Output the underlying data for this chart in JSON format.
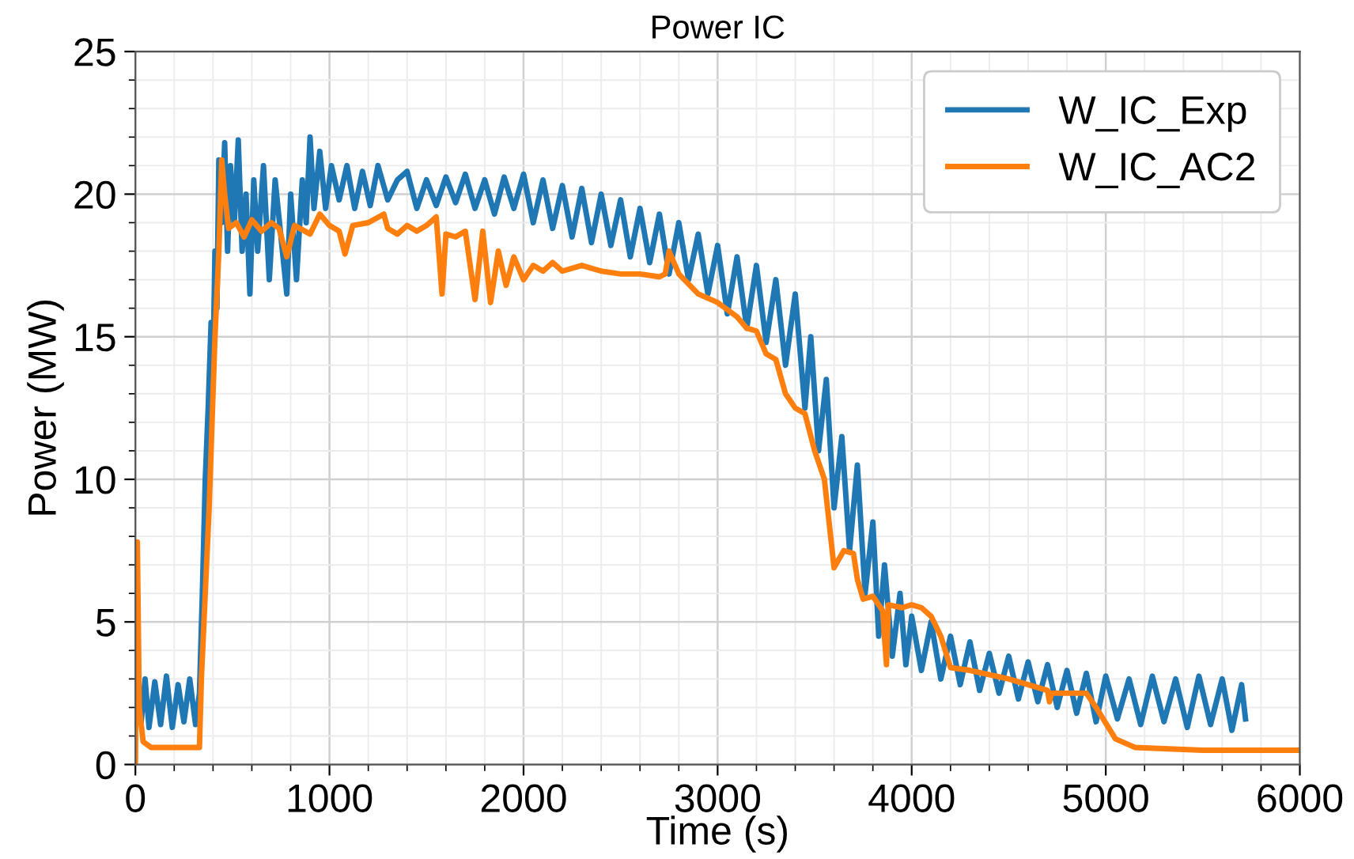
{
  "chart_data": {
    "type": "line",
    "title": "Power IC",
    "xlabel": "Time (s)",
    "ylabel": "Power (MW)",
    "xlim": [
      0,
      6000
    ],
    "ylim": [
      0,
      25
    ],
    "xticks": [
      0,
      {
        "value": 200,
        "label": null
      },
      {
        "value": 400,
        "label": null
      },
      {
        "value": 600,
        "label": null
      },
      {
        "value": 800,
        "label": null
      },
      1000,
      {
        "value": 1200,
        "label": null
      },
      {
        "value": 1400,
        "label": null
      },
      {
        "value": 1600,
        "label": null
      },
      {
        "value": 1800,
        "label": null
      },
      2000,
      {
        "value": 2200,
        "label": null
      },
      {
        "value": 2400,
        "label": null
      },
      {
        "value": 2600,
        "label": null
      },
      {
        "value": 2800,
        "label": null
      },
      3000,
      {
        "value": 3200,
        "label": null
      },
      {
        "value": 3400,
        "label": null
      },
      {
        "value": 3600,
        "label": null
      },
      {
        "value": 3800,
        "label": null
      },
      4000,
      {
        "value": 4200,
        "label": null
      },
      {
        "value": 4400,
        "label": null
      },
      {
        "value": 4600,
        "label": null
      },
      {
        "value": 4800,
        "label": null
      },
      5000,
      {
        "value": 5200,
        "label": null
      },
      {
        "value": 5400,
        "label": null
      },
      {
        "value": 5600,
        "label": null
      },
      {
        "value": 5800,
        "label": null
      },
      6000
    ],
    "yticks": [
      0,
      {
        "value": 1,
        "label": null
      },
      {
        "value": 2,
        "label": null
      },
      {
        "value": 3,
        "label": null
      },
      {
        "value": 4,
        "label": null
      },
      5,
      {
        "value": 6,
        "label": null
      },
      {
        "value": 7,
        "label": null
      },
      {
        "value": 8,
        "label": null
      },
      {
        "value": 9,
        "label": null
      },
      10,
      {
        "value": 11,
        "label": null
      },
      {
        "value": 12,
        "label": null
      },
      {
        "value": 13,
        "label": null
      },
      {
        "value": 14,
        "label": null
      },
      15,
      {
        "value": 16,
        "label": null
      },
      {
        "value": 17,
        "label": null
      },
      {
        "value": 18,
        "label": null
      },
      {
        "value": 19,
        "label": null
      },
      20,
      {
        "value": 21,
        "label": null
      },
      {
        "value": 22,
        "label": null
      },
      {
        "value": 23,
        "label": null
      },
      {
        "value": 24,
        "label": null
      },
      25
    ],
    "grid": true,
    "legend": "top right",
    "line_style": "solid",
    "series": [
      {
        "name": "W_IC_Exp",
        "color": "#1f77b4",
        "x": [
          15,
          30,
          50,
          70,
          100,
          130,
          160,
          190,
          220,
          250,
          280,
          310,
          330,
          345,
          360,
          375,
          390,
          400,
          410,
          420,
          430,
          445,
          460,
          475,
          490,
          510,
          530,
          550,
          570,
          590,
          610,
          630,
          660,
          690,
          720,
          750,
          780,
          800,
          830,
          860,
          880,
          900,
          920,
          950,
          980,
          1010,
          1050,
          1090,
          1130,
          1170,
          1210,
          1250,
          1300,
          1350,
          1400,
          1450,
          1500,
          1550,
          1600,
          1650,
          1700,
          1750,
          1800,
          1850,
          1900,
          1950,
          2000,
          2050,
          2100,
          2150,
          2200,
          2250,
          2300,
          2350,
          2400,
          2450,
          2500,
          2550,
          2600,
          2650,
          2700,
          2750,
          2800,
          2850,
          2900,
          2950,
          3000,
          3050,
          3100,
          3150,
          3200,
          3250,
          3300,
          3350,
          3400,
          3450,
          3480,
          3520,
          3560,
          3600,
          3640,
          3680,
          3720,
          3760,
          3800,
          3830,
          3860,
          3900,
          3940,
          3970,
          4000,
          4050,
          4100,
          4150,
          4200,
          4250,
          4300,
          4350,
          4400,
          4450,
          4500,
          4550,
          4600,
          4650,
          4700,
          4750,
          4800,
          4850,
          4900,
          4950,
          5000,
          5060,
          5120,
          5180,
          5240,
          5300,
          5360,
          5420,
          5480,
          5540,
          5600,
          5650,
          5700,
          5720
        ],
        "values": [
          2.5,
          1.5,
          3.0,
          1.3,
          2.9,
          1.4,
          3.1,
          1.3,
          2.8,
          1.5,
          3.0,
          1.4,
          2.5,
          6,
          10,
          12.5,
          15.5,
          14,
          18,
          16,
          21.2,
          19,
          21.8,
          18,
          21,
          19,
          21.9,
          18,
          20,
          16.5,
          20.5,
          18,
          21,
          17,
          20.5,
          18.5,
          16.5,
          20,
          17,
          20.5,
          19,
          22,
          19.5,
          21.5,
          19.5,
          21,
          19.8,
          21,
          19.5,
          20.8,
          19.6,
          21,
          19.8,
          20.5,
          20.8,
          19.5,
          20.5,
          19.6,
          20.6,
          19.7,
          20.7,
          19.5,
          20.5,
          19.3,
          20.6,
          19.5,
          20.7,
          19,
          20.5,
          18.8,
          20.3,
          18.5,
          20.2,
          18.3,
          20,
          18.2,
          19.8,
          17.8,
          19.5,
          17.6,
          19.3,
          17.2,
          19,
          17,
          18.6,
          16.5,
          18.2,
          15.8,
          17.8,
          15.3,
          17.5,
          14.8,
          17,
          14,
          16.5,
          12.5,
          15,
          11,
          13.5,
          9,
          11.5,
          7.5,
          10.5,
          6,
          8.5,
          4.5,
          7,
          3.8,
          6,
          3.5,
          5.2,
          3.3,
          5,
          3,
          4.5,
          2.8,
          4.3,
          2.6,
          3.9,
          2.5,
          3.8,
          2.3,
          3.6,
          2.2,
          3.5,
          2,
          3.3,
          1.8,
          3.2,
          1.5,
          3.1,
          1.6,
          3.0,
          1.4,
          3.1,
          1.5,
          3.0,
          1.3,
          3.1,
          1.4,
          3.0,
          1.2,
          2.8,
          1.6
        ]
      },
      {
        "name": "W_IC_AC2",
        "color": "#ff7f0e",
        "x": [
          0,
          10,
          20,
          40,
          80,
          330,
          340,
          360,
          380,
          395,
          410,
          430,
          445,
          460,
          480,
          520,
          560,
          600,
          650,
          700,
          740,
          780,
          820,
          900,
          950,
          1000,
          1050,
          1080,
          1120,
          1200,
          1280,
          1300,
          1350,
          1400,
          1450,
          1500,
          1550,
          1580,
          1600,
          1650,
          1700,
          1750,
          1790,
          1830,
          1870,
          1910,
          1950,
          2000,
          2050,
          2100,
          2150,
          2200,
          2300,
          2400,
          2500,
          2600,
          2700,
          2730,
          2750,
          2800,
          2900,
          3000,
          3100,
          3150,
          3200,
          3250,
          3300,
          3350,
          3400,
          3450,
          3500,
          3550,
          3600,
          3650,
          3700,
          3720,
          3750,
          3800,
          3850,
          3870,
          3880,
          3950,
          4000,
          4050,
          4100,
          4150,
          4200,
          4300,
          4500,
          4700,
          4710,
          4720,
          4900,
          4950,
          5050,
          5150,
          5500,
          6000
        ],
        "values": [
          0,
          7.8,
          2,
          0.8,
          0.6,
          0.6,
          3,
          6,
          9,
          12,
          15,
          18,
          21.2,
          20,
          18.8,
          19,
          18.5,
          19.1,
          18.7,
          19.0,
          18.8,
          17.8,
          18.9,
          18.6,
          19.3,
          18.9,
          18.7,
          17.9,
          18.9,
          19.0,
          19.3,
          18.8,
          18.6,
          18.9,
          18.7,
          18.9,
          19.2,
          16.5,
          18.6,
          18.5,
          18.7,
          16.3,
          18.7,
          16.2,
          18,
          16.8,
          17.8,
          17,
          17.5,
          17.3,
          17.6,
          17.3,
          17.5,
          17.3,
          17.2,
          17.2,
          17.1,
          17.2,
          18,
          17.2,
          16.5,
          16.2,
          15.7,
          15.3,
          15.2,
          14.4,
          14.2,
          13,
          12.5,
          12.3,
          11,
          10,
          6.9,
          7.5,
          7.4,
          6.5,
          5.8,
          5.9,
          5.4,
          3.5,
          5.6,
          5.5,
          5.6,
          5.5,
          5.2,
          4.5,
          3.4,
          3.3,
          3.0,
          2.6,
          2.2,
          2.5,
          2.5,
          2.0,
          0.9,
          0.6,
          0.5,
          0.5
        ]
      }
    ]
  }
}
